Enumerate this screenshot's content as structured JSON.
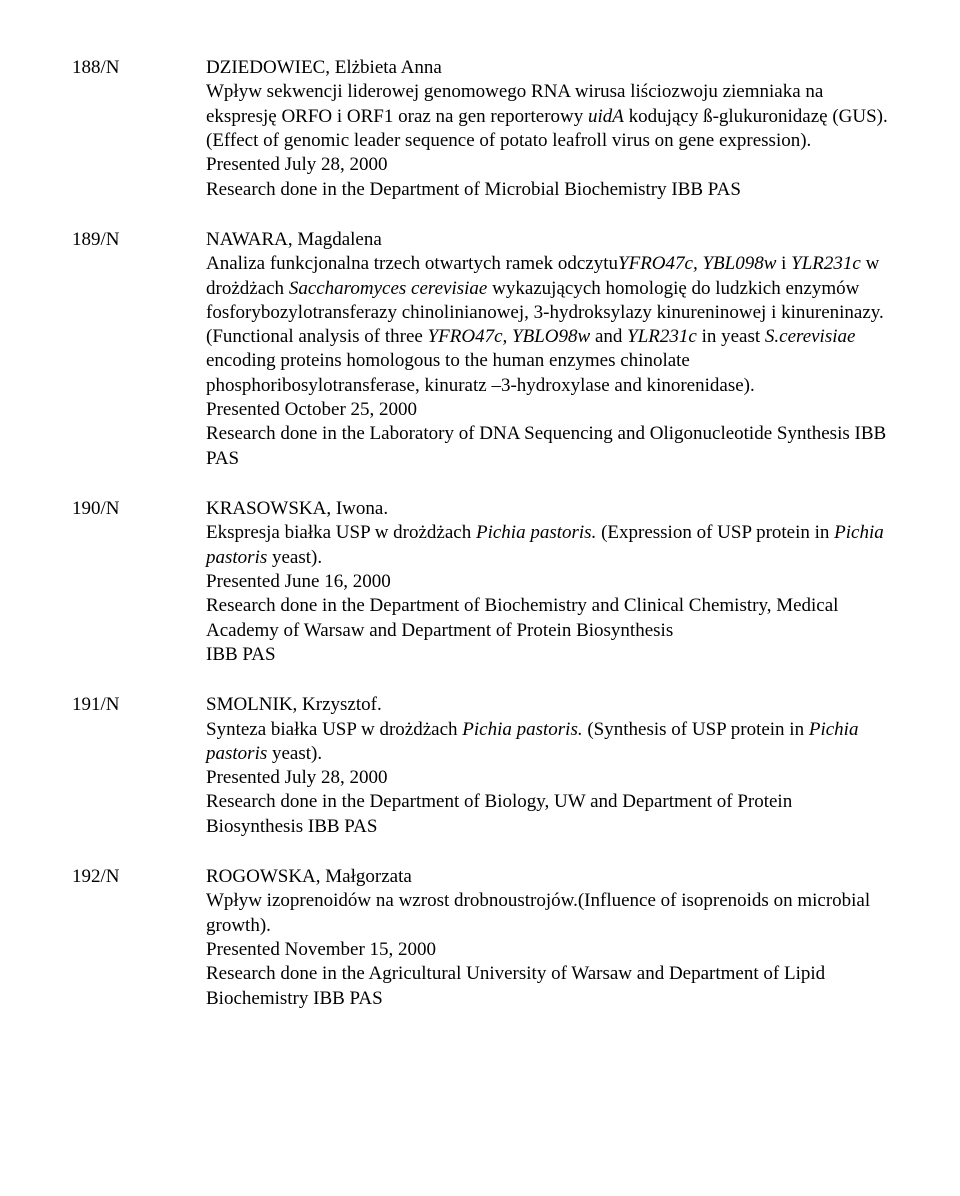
{
  "entries": [
    {
      "id": "188/N",
      "author": "DZIEDOWIEC, Elżbieta Anna",
      "lines": [
        [
          {
            "t": "Wpływ sekwencji liderowej genomowego RNA wirusa liściozwoju ziemniaka na ekspresję ORFO i ORF1 oraz na gen reporterowy "
          },
          {
            "t": "uidA",
            "i": true
          },
          {
            "t": " kodujący ß-glukuronidazę (GUS). (Effect of genomic leader sequence of potato leafroll virus on gene expression)."
          }
        ],
        [
          {
            "t": "Presented July 28, 2000"
          }
        ],
        [
          {
            "t": "Research done in the Department of Microbial Biochemistry IBB PAS"
          }
        ]
      ]
    },
    {
      "id": "189/N",
      "author": "NAWARA, Magdalena",
      "lines": [
        [
          {
            "t": "Analiza funkcjonalna trzech otwartych ramek odczytu"
          },
          {
            "t": "YFRO47c, YBL098w",
            "i": true
          },
          {
            "t": " i "
          },
          {
            "t": "YLR231c",
            "i": true
          },
          {
            "t": " w drożdżach "
          },
          {
            "t": "Saccharomyces cerevisiae",
            "i": true
          },
          {
            "t": " wykazujących homologię do ludzkich enzymów fosforybozylotransferazy chinolinianowej, 3-hydroksylazy kinureninowej i kinureninazy.(Functional analysis of three "
          },
          {
            "t": "YFRO47c, YBLO98w",
            "i": true
          },
          {
            "t": " and "
          },
          {
            "t": "YLR231c",
            "i": true
          },
          {
            "t": " in yeast "
          },
          {
            "t": "S.cerevisiae",
            "i": true
          },
          {
            "t": " encoding proteins homologous to the human enzymes chinolate phosphoribosylotransferase, kinuratz –3-hydroxylase and kinorenidase)."
          }
        ],
        [
          {
            "t": "Presented  October 25, 2000"
          }
        ],
        [
          {
            "t": "Research done in the Laboratory of DNA Sequencing and Oligonucleotide Synthesis IBB PAS"
          }
        ]
      ]
    },
    {
      "id": "190/N",
      "author": "KRASOWSKA, Iwona.",
      "lines": [
        [
          {
            "t": "Ekspresja białka USP w drożdżach "
          },
          {
            "t": "Pichia pastoris.",
            "i": true
          },
          {
            "t": " (Expression of USP protein in "
          },
          {
            "t": "Pichia pastoris",
            "i": true
          },
          {
            "t": " yeast)."
          }
        ],
        [
          {
            "t": "Presented June 16, 2000"
          }
        ],
        [
          {
            "t": "Research done in the Department of Biochemistry and Clinical Chemistry, Medical Academy of Warsaw and Department of Protein Biosynthesis"
          }
        ],
        [
          {
            "t": "IBB PAS"
          }
        ]
      ]
    },
    {
      "id": "191/N",
      "author": "SMOLNIK, Krzysztof.",
      "lines": [
        [
          {
            "t": "Synteza białka USP w drożdżach "
          },
          {
            "t": "Pichia pastoris.",
            "i": true
          },
          {
            "t": " (Synthesis of USP protein in "
          },
          {
            "t": "Pichia pastoris",
            "i": true
          },
          {
            "t": " yeast)."
          }
        ],
        [
          {
            "t": "Presented July 28, 2000"
          }
        ],
        [
          {
            "t": "Research done in the Department of Biology, UW and Department of Protein Biosynthesis IBB PAS"
          }
        ]
      ]
    },
    {
      "id": "192/N",
      "author": "ROGOWSKA, Małgorzata",
      "lines": [
        [
          {
            "t": "Wpływ izoprenoidów na wzrost drobnoustrojów.(Influence of isoprenoids on microbial growth)."
          }
        ],
        [
          {
            "t": "Presented November 15, 2000"
          }
        ],
        [
          {
            "t": "Research done in the Agricultural University of Warsaw and Department of Lipid Biochemistry IBB PAS"
          }
        ]
      ]
    }
  ]
}
